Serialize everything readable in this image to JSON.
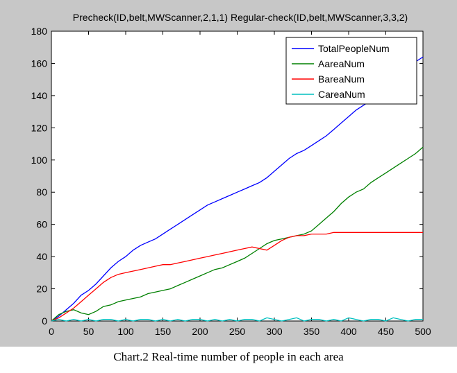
{
  "caption": "Chart.2 Real-time number of people in each area",
  "chart_data": {
    "type": "line",
    "title": "Precheck(ID,belt,MWScanner,2,1,1) Regular-check(ID,belt,MWScanner,3,3,2)",
    "xlabel": "",
    "ylabel": "",
    "xlim": [
      0,
      500
    ],
    "ylim": [
      0,
      180
    ],
    "x_ticks": [
      0,
      50,
      100,
      150,
      200,
      250,
      300,
      350,
      400,
      450,
      500
    ],
    "y_ticks": [
      0,
      20,
      40,
      60,
      80,
      100,
      120,
      140,
      160,
      180
    ],
    "grid": false,
    "legend_position": "top-right",
    "x": [
      0,
      10,
      20,
      30,
      40,
      50,
      60,
      70,
      80,
      90,
      100,
      110,
      120,
      130,
      140,
      150,
      160,
      170,
      180,
      190,
      200,
      210,
      220,
      230,
      240,
      250,
      260,
      270,
      280,
      290,
      300,
      310,
      320,
      330,
      340,
      350,
      360,
      370,
      380,
      390,
      400,
      410,
      420,
      430,
      440,
      450,
      460,
      470,
      480,
      490,
      500
    ],
    "series": [
      {
        "name": "TotalPeopleNum",
        "color": "#0000ff",
        "values": [
          0,
          3,
          7,
          11,
          16,
          19,
          23,
          28,
          33,
          37,
          40,
          44,
          47,
          49,
          51,
          54,
          57,
          60,
          63,
          66,
          69,
          72,
          74,
          76,
          78,
          80,
          82,
          84,
          86,
          89,
          93,
          97,
          101,
          104,
          106,
          109,
          112,
          115,
          119,
          123,
          127,
          131,
          134,
          137,
          140,
          145,
          149,
          153,
          157,
          161,
          164
        ]
      },
      {
        "name": "AareaNum",
        "color": "#008000",
        "values": [
          0,
          4,
          6,
          7,
          5,
          4,
          6,
          9,
          10,
          12,
          13,
          14,
          15,
          17,
          18,
          19,
          20,
          22,
          24,
          26,
          28,
          30,
          32,
          33,
          35,
          37,
          39,
          42,
          45,
          48,
          50,
          51,
          52,
          53,
          54,
          56,
          60,
          64,
          68,
          73,
          77,
          80,
          82,
          86,
          89,
          92,
          95,
          98,
          101,
          104,
          108
        ]
      },
      {
        "name": "BareaNum",
        "color": "#ff0000",
        "values": [
          0,
          2,
          5,
          8,
          12,
          16,
          20,
          24,
          27,
          29,
          30,
          31,
          32,
          33,
          34,
          35,
          35,
          36,
          37,
          38,
          39,
          40,
          41,
          42,
          43,
          44,
          45,
          46,
          45,
          44,
          47,
          50,
          52,
          53,
          53,
          54,
          54,
          54,
          55,
          55,
          55,
          55,
          55,
          55,
          55,
          55,
          55,
          55,
          55,
          55,
          55
        ]
      },
      {
        "name": "CareaNum",
        "color": "#00bfbf",
        "values": [
          0,
          1,
          0,
          1,
          0,
          1,
          0,
          1,
          1,
          0,
          1,
          0,
          1,
          1,
          0,
          1,
          0,
          1,
          0,
          1,
          1,
          0,
          1,
          0,
          1,
          0,
          1,
          1,
          0,
          2,
          1,
          0,
          1,
          2,
          0,
          1,
          1,
          0,
          1,
          0,
          2,
          1,
          0,
          1,
          1,
          0,
          2,
          1,
          0,
          1,
          1
        ]
      }
    ]
  }
}
